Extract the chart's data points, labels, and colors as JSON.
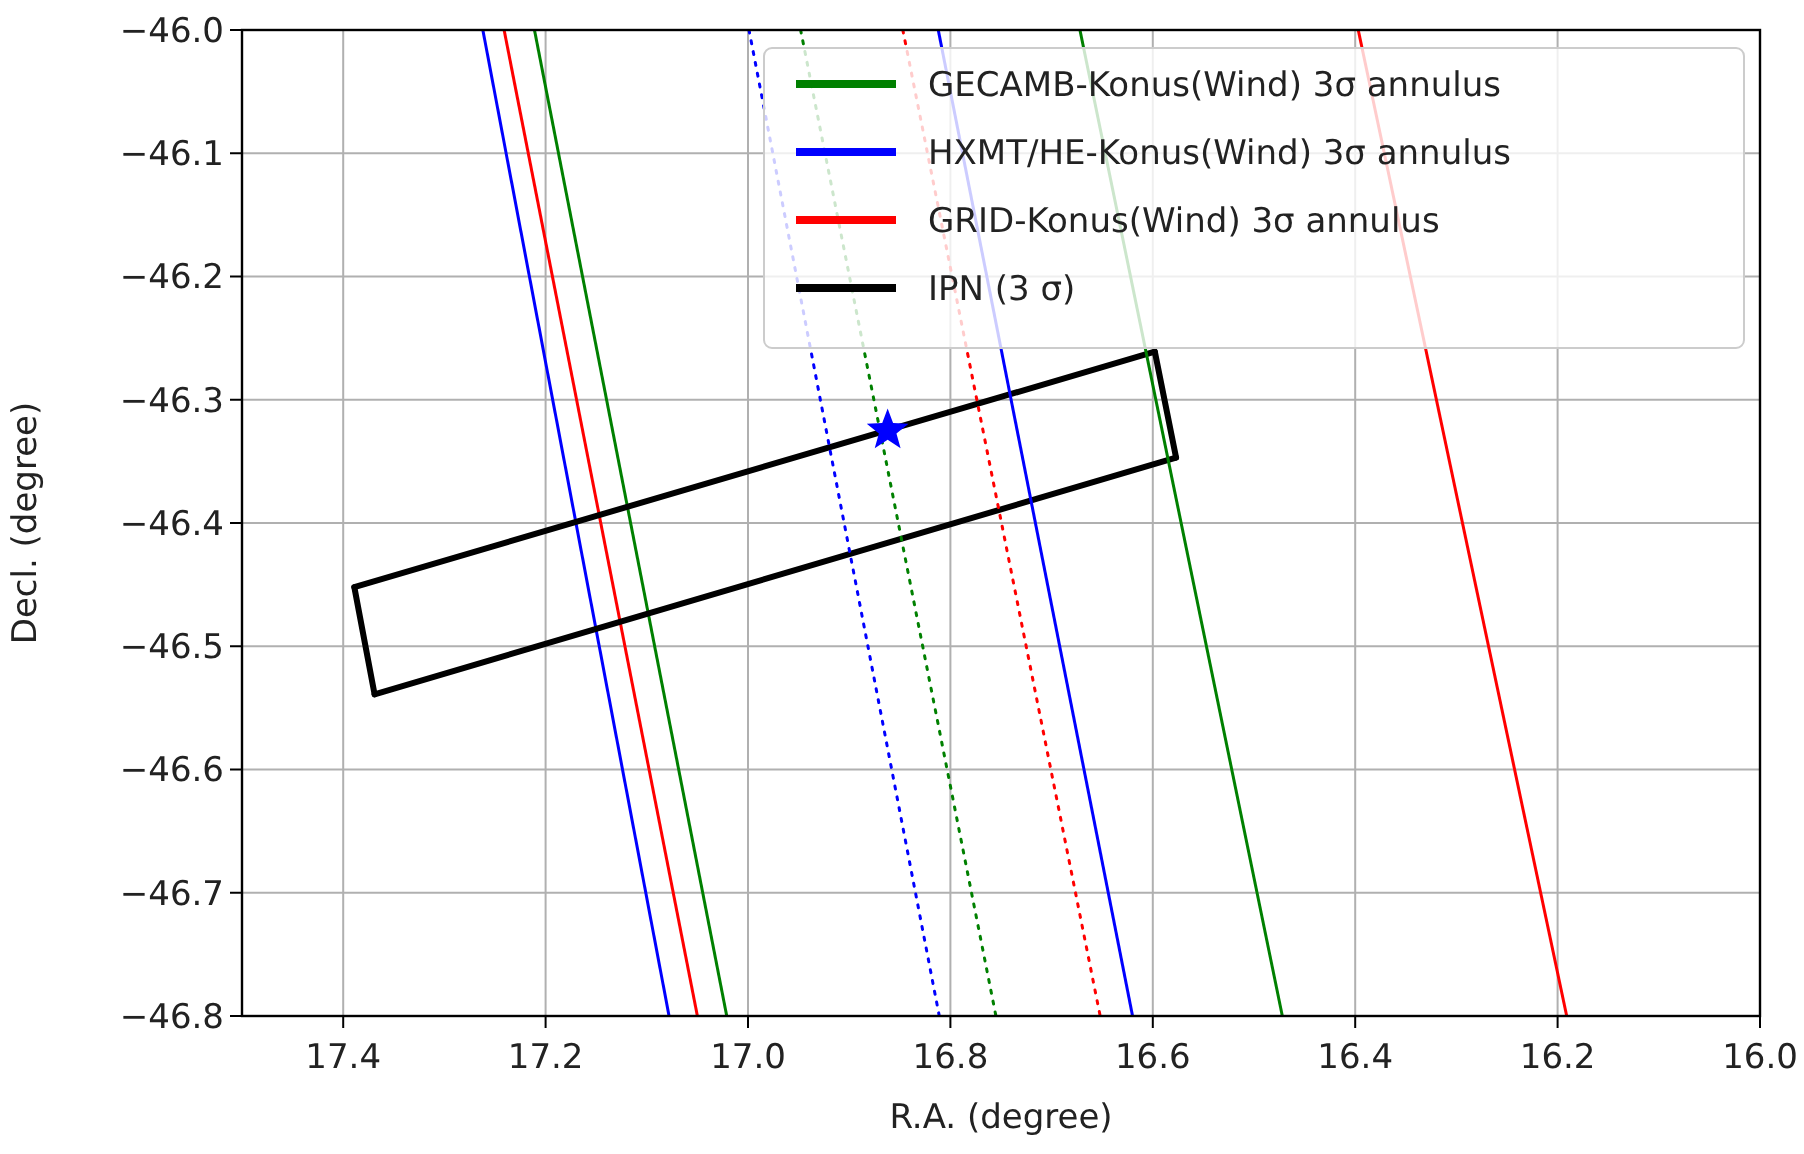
{
  "chart_data": {
    "type": "line",
    "xlabel": "R.A. (degree)",
    "ylabel": "Decl. (degree)",
    "xlim": [
      17.5,
      16.0
    ],
    "ylim": [
      -46.8,
      -46.0
    ],
    "xticks": [
      {
        "value": 17.4,
        "label": "17.4"
      },
      {
        "value": 17.2,
        "label": "17.2"
      },
      {
        "value": 17.0,
        "label": "17.0"
      },
      {
        "value": 16.8,
        "label": "16.8"
      },
      {
        "value": 16.6,
        "label": "16.6"
      },
      {
        "value": 16.4,
        "label": "16.4"
      },
      {
        "value": 16.2,
        "label": "16.2"
      },
      {
        "value": 16.0,
        "label": "16.0"
      }
    ],
    "yticks": [
      {
        "value": -46.8,
        "label": "−46.8"
      },
      {
        "value": -46.7,
        "label": "−46.7"
      },
      {
        "value": -46.6,
        "label": "−46.6"
      },
      {
        "value": -46.5,
        "label": "−46.5"
      },
      {
        "value": -46.4,
        "label": "−46.4"
      },
      {
        "value": -46.3,
        "label": "−46.3"
      },
      {
        "value": -46.2,
        "label": "−46.2"
      },
      {
        "value": -46.1,
        "label": "−46.1"
      },
      {
        "value": -46.0,
        "label": "−46.0"
      }
    ],
    "grid": true,
    "legend": "top right",
    "marker": "none",
    "line_style": "solid",
    "series": [
      {
        "name": "GECAMB-Konus(Wind) 3σ annulus",
        "color": "#008000",
        "x": [
          17.211,
          17.021
        ],
        "values": [
          -46.0,
          -46.8
        ]
      },
      {
        "name": "HXMT/HE-Konus(Wind) 3σ annulus",
        "color": "#0000ff",
        "x": [
          17.262,
          17.078
        ],
        "values": [
          -46.0,
          -46.8
        ]
      },
      {
        "name": "GRID-Konus(Wind) 3σ annulus",
        "color": "#ff0000",
        "x": [
          17.241,
          17.05
        ],
        "values": [
          -46.0,
          -46.8
        ]
      },
      {
        "name": "IPN (3 σ)",
        "color": "#000000",
        "x": [
          17.389,
          16.598
        ],
        "values": [
          -46.452,
          -46.261
        ]
      },
      {
        "color": "#000000",
        "x": [
          16.598,
          16.577
        ],
        "values": [
          -46.261,
          -46.347
        ]
      },
      {
        "color": "#000000",
        "x": [
          16.577,
          17.369
        ],
        "values": [
          -46.347,
          -46.539
        ]
      },
      {
        "color": "#000000",
        "x": [
          17.369,
          17.389
        ],
        "values": [
          -46.539,
          -46.452
        ]
      },
      {
        "color": "#008000",
        "x": [
          16.672,
          16.472
        ],
        "values": [
          -46.0,
          -46.8
        ]
      },
      {
        "color": "#0000ff",
        "x": [
          16.812,
          16.62
        ],
        "values": [
          -46.0,
          -46.8
        ]
      },
      {
        "color": "#ff0000",
        "x": [
          16.397,
          16.191
        ],
        "values": [
          -46.0,
          -46.8
        ]
      },
      {
        "color": "#008000",
        "line_style": "dotted",
        "x": [
          16.948,
          16.755
        ],
        "values": [
          -46.0,
          -46.8
        ]
      },
      {
        "color": "#0000ff",
        "line_style": "dotted",
        "x": [
          16.999,
          16.811
        ],
        "values": [
          -46.0,
          -46.8
        ]
      },
      {
        "color": "#ff0000",
        "line_style": "dotted",
        "x": [
          16.847,
          16.652
        ],
        "values": [
          -46.0,
          -46.8
        ]
      },
      {
        "type": "scatter",
        "marker": "star",
        "color": "#0000ff",
        "x": [
          16.862
        ],
        "values": [
          -46.325
        ]
      }
    ]
  }
}
